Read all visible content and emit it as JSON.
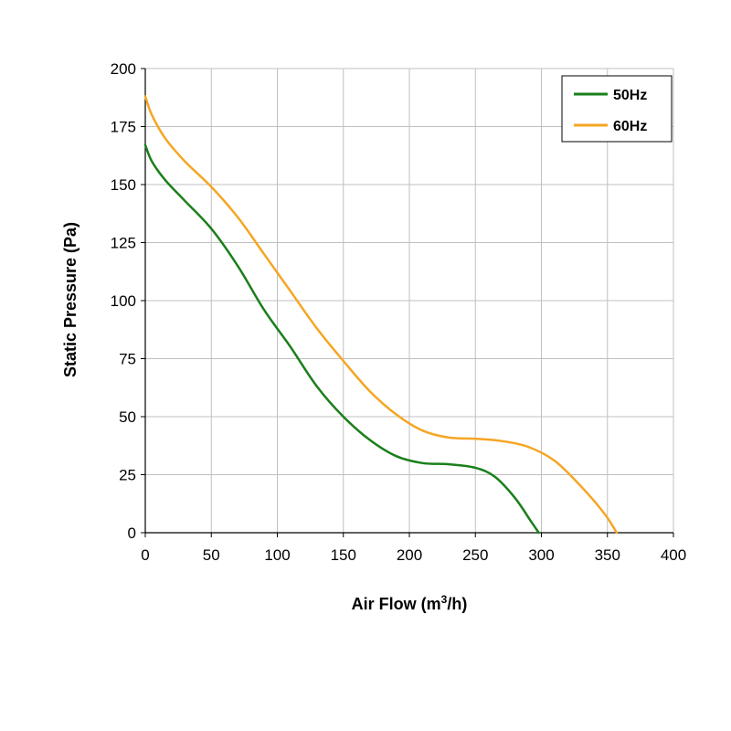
{
  "chart_data": {
    "type": "line",
    "xlabel": "Air Flow (m",
    "xlabel_sup": "3",
    "xlabel_tail": "/h)",
    "ylabel": "Static Pressure (Pa)",
    "xlim": [
      0,
      400
    ],
    "ylim": [
      0,
      200
    ],
    "x_ticks": [
      "0",
      "50",
      "100",
      "150",
      "200",
      "250",
      "300",
      "350",
      "400"
    ],
    "y_ticks": [
      "0",
      "25",
      "50",
      "75",
      "100",
      "125",
      "150",
      "175",
      "200"
    ],
    "grid": true,
    "legend_position": "top-right",
    "series": [
      {
        "name": "50Hz",
        "color": "#1a7f1a",
        "points": [
          [
            0,
            167
          ],
          [
            5,
            160
          ],
          [
            15,
            152
          ],
          [
            30,
            143
          ],
          [
            50,
            131
          ],
          [
            70,
            115
          ],
          [
            90,
            96
          ],
          [
            110,
            80
          ],
          [
            130,
            63
          ],
          [
            150,
            50
          ],
          [
            170,
            40
          ],
          [
            190,
            33
          ],
          [
            210,
            30
          ],
          [
            230,
            29.5
          ],
          [
            250,
            28
          ],
          [
            265,
            24
          ],
          [
            280,
            15
          ],
          [
            292,
            5
          ],
          [
            298,
            0
          ]
        ]
      },
      {
        "name": "60Hz",
        "color": "#f5a623",
        "points": [
          [
            0,
            188
          ],
          [
            5,
            180
          ],
          [
            15,
            170
          ],
          [
            30,
            160
          ],
          [
            50,
            149
          ],
          [
            70,
            136
          ],
          [
            90,
            120
          ],
          [
            110,
            104
          ],
          [
            130,
            88
          ],
          [
            150,
            74
          ],
          [
            170,
            61
          ],
          [
            190,
            51
          ],
          [
            210,
            44
          ],
          [
            230,
            41
          ],
          [
            250,
            40.5
          ],
          [
            270,
            39.5
          ],
          [
            290,
            37
          ],
          [
            310,
            31
          ],
          [
            330,
            20
          ],
          [
            348,
            8
          ],
          [
            357,
            0
          ]
        ]
      }
    ]
  }
}
